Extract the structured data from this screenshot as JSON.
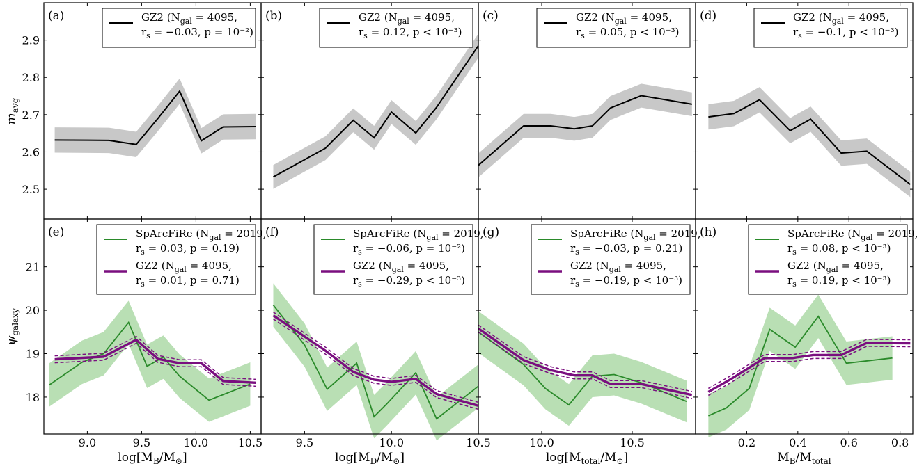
{
  "colors": {
    "gz2": "#000000",
    "gz2_band": "#c8c8c8",
    "sparc": "#2a8a2a",
    "sparc_band": "#b9dfb4",
    "gz2_bottom": "#7a0f7f"
  },
  "ylabel_top": "m_avg",
  "ylabel_bottom": "ψ_galaxy",
  "chart_data": [
    {
      "type": "line",
      "panel": "(a)",
      "row": "top",
      "xlabel": "log[M_B/M_⊙]",
      "xlim": [
        8.6,
        10.6
      ],
      "xticks": [
        "9.0",
        "9.5",
        "10.0",
        "10.5"
      ],
      "show_xticks": false,
      "ylim": [
        2.42,
        3.0
      ],
      "yticks": [
        "2.5",
        "2.6",
        "2.7",
        "2.8",
        "2.9"
      ],
      "legend": [
        {
          "text1": "GZ2 (N_gal = 4095,",
          "text2": "r_s = −0.03, p = 10⁻²)"
        }
      ],
      "series": [
        {
          "name": "GZ2",
          "kind": "gz2",
          "x": [
            8.7,
            9.2,
            9.45,
            9.65,
            9.85,
            10.05,
            10.25,
            10.55
          ],
          "y": [
            2.632,
            2.631,
            2.62,
            2.69,
            2.763,
            2.63,
            2.667,
            2.668
          ],
          "band": 0.034
        }
      ]
    },
    {
      "type": "line",
      "panel": "(b)",
      "row": "top",
      "xlabel": "log[M_D/M_⊙]",
      "xlim": [
        9.25,
        10.5
      ],
      "xticks": [
        "9.5",
        "10.0",
        "10.5"
      ],
      "show_xticks": false,
      "ylim": [
        2.42,
        3.0
      ],
      "yticks": [
        "2.5",
        "2.6",
        "2.7",
        "2.8",
        "2.9"
      ],
      "legend": [
        {
          "text1": "GZ2 (N_gal = 4095,",
          "text2": "r_s = 0.12, p < 10⁻³)"
        }
      ],
      "series": [
        {
          "name": "GZ2",
          "kind": "gz2",
          "x": [
            9.32,
            9.62,
            9.78,
            9.9,
            10.0,
            10.14,
            10.26,
            10.5
          ],
          "y": [
            2.533,
            2.61,
            2.685,
            2.638,
            2.707,
            2.651,
            2.72,
            2.885
          ],
          "band": 0.032
        }
      ]
    },
    {
      "type": "line",
      "panel": "(c)",
      "row": "top",
      "xlabel": "log[M_total/M_⊙]",
      "xlim": [
        9.65,
        10.85
      ],
      "xticks": [
        "10.0",
        "10.5"
      ],
      "show_xticks": false,
      "ylim": [
        2.42,
        3.0
      ],
      "yticks": [
        "2.5",
        "2.6",
        "2.7",
        "2.8",
        "2.9"
      ],
      "legend": [
        {
          "text1": "GZ2 (N_gal = 4095,",
          "text2": "r_s = 0.05, p < 10⁻³)"
        }
      ],
      "series": [
        {
          "name": "GZ2",
          "kind": "gz2",
          "x": [
            9.65,
            9.9,
            10.05,
            10.18,
            10.28,
            10.38,
            10.55,
            10.83
          ],
          "y": [
            2.564,
            2.67,
            2.67,
            2.662,
            2.67,
            2.718,
            2.751,
            2.728
          ],
          "band": 0.032
        }
      ]
    },
    {
      "type": "line",
      "panel": "(d)",
      "row": "top",
      "xlabel": "M_B/M_total",
      "xlim": [
        0.0,
        0.85
      ],
      "xticks": [
        "0.2",
        "0.4",
        "0.6",
        "0.8"
      ],
      "show_xticks": false,
      "ylim": [
        2.42,
        3.0
      ],
      "yticks": [
        "2.5",
        "2.6",
        "2.7",
        "2.8",
        "2.9"
      ],
      "legend": [
        {
          "text1": "GZ2 (N_gal = 4095,",
          "text2": "r_s = −0.1, p < 10⁻³)"
        }
      ],
      "series": [
        {
          "name": "GZ2",
          "kind": "gz2",
          "x": [
            0.05,
            0.15,
            0.25,
            0.37,
            0.45,
            0.57,
            0.67,
            0.84
          ],
          "y": [
            2.694,
            2.703,
            2.74,
            2.657,
            2.688,
            2.597,
            2.602,
            2.513
          ],
          "band": 0.034
        }
      ]
    },
    {
      "type": "line",
      "panel": "(e)",
      "row": "bottom",
      "xlabel": "log[M_B/M_⊙]",
      "xlim": [
        8.6,
        10.6
      ],
      "xticks": [
        "9.0",
        "9.5",
        "10.0",
        "10.5"
      ],
      "show_xticks": true,
      "ylim": [
        17.15,
        22.1
      ],
      "yticks": [
        "18",
        "19",
        "20",
        "21"
      ],
      "legend": [
        {
          "text1": "SpArcFiRe (N_gal = 2019,",
          "text2": "r_s = 0.03, p = 0.19)"
        },
        {
          "text1": "GZ2 (N_gal = 4095,",
          "text2": "r_s = 0.01, p = 0.71)"
        }
      ],
      "series": [
        {
          "name": "SpArcFiRe",
          "kind": "sparc",
          "x": [
            8.65,
            8.95,
            9.15,
            9.38,
            9.55,
            9.7,
            9.85,
            10.12,
            10.5
          ],
          "y": [
            18.28,
            18.8,
            19.0,
            19.72,
            18.71,
            18.92,
            18.48,
            17.93,
            18.3
          ],
          "band": 0.5
        },
        {
          "name": "GZ2",
          "kind": "gz2_bottom",
          "x": [
            8.7,
            9.15,
            9.45,
            9.65,
            9.85,
            10.05,
            10.25,
            10.55
          ],
          "y": [
            18.87,
            18.93,
            19.32,
            18.88,
            18.78,
            18.78,
            18.37,
            18.33
          ],
          "band": 0.08
        }
      ]
    },
    {
      "type": "line",
      "panel": "(f)",
      "row": "bottom",
      "xlabel": "log[M_D/M_⊙]",
      "xlim": [
        9.25,
        10.5
      ],
      "xticks": [
        "9.5",
        "10.0",
        "10.5"
      ],
      "show_xticks": true,
      "ylim": [
        17.15,
        22.1
      ],
      "yticks": [
        "18",
        "19",
        "20",
        "21"
      ],
      "legend": [
        {
          "text1": "SpArcFiRe (N_gal = 2019,",
          "text2": "r_s = −0.06, p = 10⁻²)"
        },
        {
          "text1": "GZ2 (N_gal = 4095,",
          "text2": "r_s = −0.29, p < 10⁻³)"
        }
      ],
      "series": [
        {
          "name": "SpArcFiRe",
          "kind": "sparc",
          "x": [
            9.32,
            9.5,
            9.63,
            9.8,
            9.9,
            9.97,
            10.14,
            10.26,
            10.5
          ],
          "y": [
            20.12,
            19.2,
            18.18,
            18.78,
            17.55,
            17.83,
            18.56,
            17.5,
            18.25
          ],
          "band": 0.5
        },
        {
          "name": "GZ2",
          "kind": "gz2_bottom",
          "x": [
            9.32,
            9.62,
            9.78,
            9.9,
            10.0,
            10.14,
            10.26,
            10.5
          ],
          "y": [
            19.88,
            19.07,
            18.58,
            18.4,
            18.35,
            18.42,
            18.07,
            17.8
          ],
          "band": 0.08
        }
      ]
    },
    {
      "type": "line",
      "panel": "(g)",
      "row": "bottom",
      "xlabel": "log[M_total/M_⊙]",
      "xlim": [
        9.65,
        10.85
      ],
      "xticks": [
        "10.0",
        "10.5"
      ],
      "show_xticks": true,
      "ylim": [
        17.15,
        22.1
      ],
      "yticks": [
        "18",
        "19",
        "20",
        "21"
      ],
      "legend": [
        {
          "text1": "SpArcFiRe (N_gal = 2019,",
          "text2": "r_s = −0.03, p = 0.21)"
        },
        {
          "text1": "GZ2 (N_gal = 4095,",
          "text2": "r_s = −0.19, p < 10⁻³)"
        }
      ],
      "series": [
        {
          "name": "SpArcFiRe",
          "kind": "sparc",
          "x": [
            9.65,
            9.9,
            10.02,
            10.15,
            10.28,
            10.4,
            10.55,
            10.8
          ],
          "y": [
            19.5,
            18.75,
            18.2,
            17.82,
            18.48,
            18.52,
            18.33,
            17.9
          ],
          "band": 0.48
        },
        {
          "name": "GZ2",
          "kind": "gz2_bottom",
          "x": [
            9.65,
            9.9,
            10.05,
            10.18,
            10.28,
            10.38,
            10.55,
            10.83
          ],
          "y": [
            19.58,
            18.85,
            18.62,
            18.5,
            18.5,
            18.3,
            18.3,
            18.05
          ],
          "band": 0.08
        }
      ]
    },
    {
      "type": "line",
      "panel": "(h)",
      "row": "bottom",
      "xlabel": "M_B/M_total",
      "xlim": [
        0.0,
        0.85
      ],
      "xticks": [
        "0.2",
        "0.4",
        "0.6",
        "0.8"
      ],
      "show_xticks": true,
      "ylim": [
        17.15,
        22.1
      ],
      "yticks": [
        "18",
        "19",
        "20",
        "21"
      ],
      "legend": [
        {
          "text1": "SpArcFiRe (N_gal = 2019,",
          "text2": "r_s = 0.08, p < 10⁻³)"
        },
        {
          "text1": "GZ2 (N_gal = 4095,",
          "text2": "r_s = 0.19, p < 10⁻³)"
        }
      ],
      "series": [
        {
          "name": "SpArcFiRe",
          "kind": "sparc",
          "x": [
            0.05,
            0.12,
            0.21,
            0.29,
            0.39,
            0.48,
            0.59,
            0.77
          ],
          "y": [
            17.57,
            17.75,
            18.2,
            19.56,
            19.15,
            19.86,
            18.78,
            18.9
          ],
          "band": 0.5
        },
        {
          "name": "GZ2",
          "kind": "gz2_bottom",
          "x": [
            0.05,
            0.14,
            0.27,
            0.38,
            0.46,
            0.57,
            0.67,
            0.84
          ],
          "y": [
            18.12,
            18.42,
            18.9,
            18.9,
            18.97,
            18.97,
            19.25,
            19.24
          ],
          "band": 0.08
        }
      ]
    }
  ]
}
